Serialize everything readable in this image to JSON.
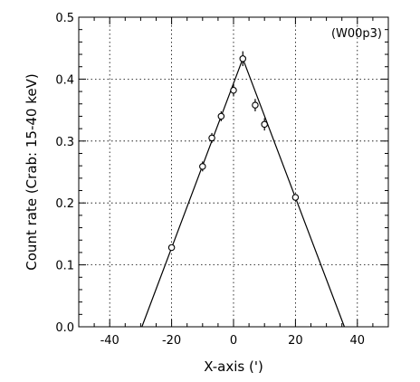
{
  "chart_data": {
    "type": "scatter",
    "annotation": "(W00p3)",
    "xlabel": "X-axis (')",
    "ylabel": "Count rate (Crab: 15-40 keV)",
    "xlim": [
      -50,
      50
    ],
    "ylim": [
      0,
      0.5
    ],
    "x_ticks": [
      -40,
      -20,
      0,
      20,
      40
    ],
    "y_ticks": [
      0.0,
      0.1,
      0.2,
      0.3,
      0.4,
      0.5
    ],
    "x_tick_labels": [
      "-40",
      "-20",
      "0",
      "20",
      "40"
    ],
    "y_tick_labels": [
      "0.0",
      "0.1",
      "0.2",
      "0.3",
      "0.4",
      "0.5"
    ],
    "grid": true,
    "points": [
      {
        "x": -20,
        "y": 0.128,
        "err": 0.004
      },
      {
        "x": -10,
        "y": 0.259,
        "err": 0.008
      },
      {
        "x": -7,
        "y": 0.305,
        "err": 0.008
      },
      {
        "x": -4,
        "y": 0.34,
        "err": 0.008
      },
      {
        "x": 0,
        "y": 0.382,
        "err": 0.01
      },
      {
        "x": 3,
        "y": 0.433,
        "err": 0.012
      },
      {
        "x": 7,
        "y": 0.358,
        "err": 0.01
      },
      {
        "x": 10,
        "y": 0.327,
        "err": 0.01
      },
      {
        "x": 20,
        "y": 0.209,
        "err": 0.004
      }
    ],
    "model_line": [
      {
        "x": -29.6,
        "y": 0.0
      },
      {
        "x": 3.0,
        "y": 0.433
      },
      {
        "x": 35.8,
        "y": 0.0
      }
    ]
  }
}
